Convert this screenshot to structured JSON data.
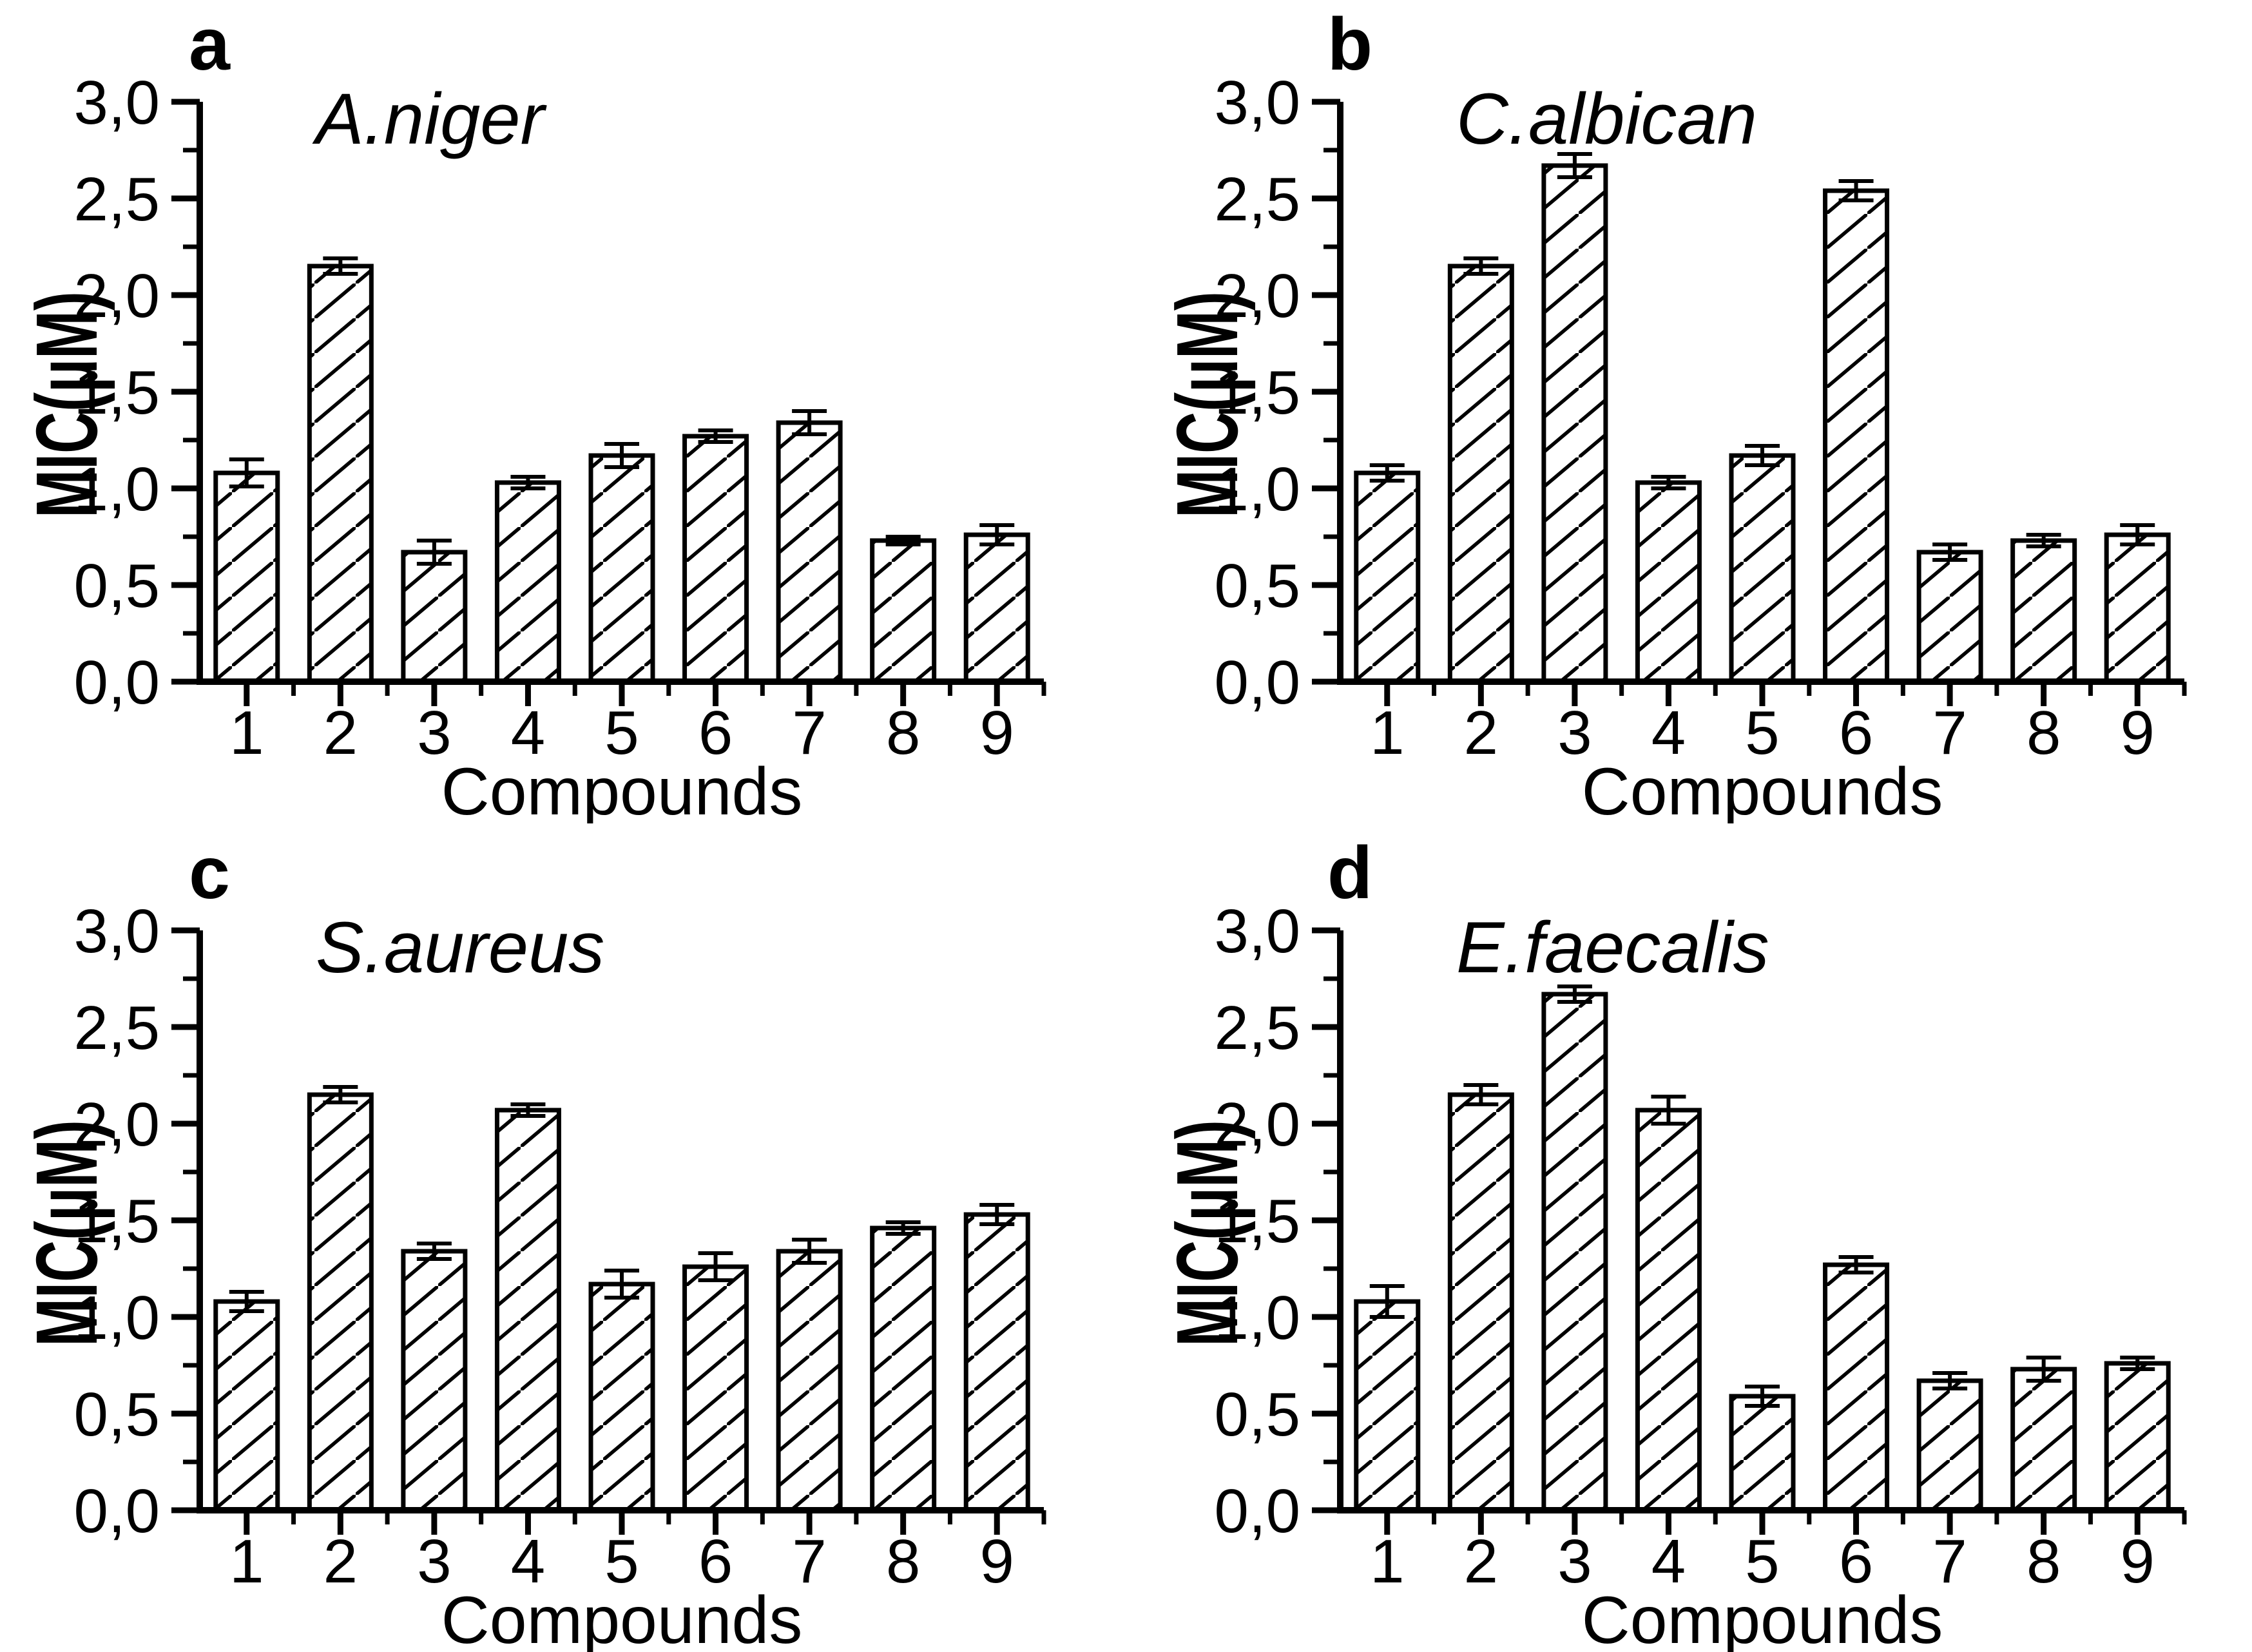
{
  "figure": {
    "background": "#ffffff",
    "ink": "#000000",
    "xlabel": "Compounds",
    "ylabel": "MIC(µM)",
    "categories": [
      "1",
      "2",
      "3",
      "4",
      "5",
      "6",
      "7",
      "8",
      "9"
    ],
    "y_tick_values": [
      0,
      0.5,
      1.0,
      1.5,
      2.0,
      2.5,
      3.0
    ],
    "y_tick_labels": [
      "0,0",
      "0,5",
      "1,0",
      "1,5",
      "2,0",
      "2,5",
      "3,0"
    ],
    "y_minor_values": [
      0.25,
      0.75,
      1.25,
      1.75,
      2.25,
      2.75
    ],
    "ylim": [
      0,
      3.0
    ]
  },
  "chart_data": [
    {
      "type": "bar",
      "panel_letter": "a",
      "title": "A.niger",
      "xlabel": "Compounds",
      "ylabel": "MIC(µM)",
      "categories": [
        "1",
        "2",
        "3",
        "4",
        "5",
        "6",
        "7",
        "8",
        "9"
      ],
      "values": [
        1.08,
        2.15,
        0.67,
        1.03,
        1.17,
        1.27,
        1.34,
        0.73,
        0.76
      ],
      "errors": [
        0.07,
        0.04,
        0.06,
        0.03,
        0.06,
        0.03,
        0.06,
        0.02,
        0.05
      ],
      "ylim": [
        0,
        3.0
      ],
      "bar_style": "diagonal-hatch",
      "legend": "none"
    },
    {
      "type": "bar",
      "panel_letter": "b",
      "title": "C.albican",
      "xlabel": "Compounds",
      "ylabel": "MIC(µM)",
      "categories": [
        "1",
        "2",
        "3",
        "4",
        "5",
        "6",
        "7",
        "8",
        "9"
      ],
      "values": [
        1.08,
        2.15,
        2.67,
        1.03,
        1.17,
        2.54,
        0.67,
        0.73,
        0.76
      ],
      "errors": [
        0.04,
        0.04,
        0.06,
        0.03,
        0.05,
        0.05,
        0.04,
        0.03,
        0.05
      ],
      "ylim": [
        0,
        3.0
      ],
      "bar_style": "diagonal-hatch",
      "legend": "none"
    },
    {
      "type": "bar",
      "panel_letter": "c",
      "title": "S.aureus",
      "xlabel": "Compounds",
      "ylabel": "MIC(µM)",
      "categories": [
        "1",
        "2",
        "3",
        "4",
        "5",
        "6",
        "7",
        "8",
        "9"
      ],
      "values": [
        1.08,
        2.15,
        1.34,
        2.07,
        1.17,
        1.26,
        1.34,
        1.46,
        1.53
      ],
      "errors": [
        0.05,
        0.04,
        0.04,
        0.03,
        0.07,
        0.07,
        0.06,
        0.03,
        0.05
      ],
      "ylim": [
        0,
        3.0
      ],
      "bar_style": "diagonal-hatch",
      "legend": "none"
    },
    {
      "type": "bar",
      "panel_letter": "d",
      "title": "E.faecalis",
      "xlabel": "Compounds",
      "ylabel": "MIC(µM)",
      "categories": [
        "1",
        "2",
        "3",
        "4",
        "5",
        "6",
        "7",
        "8",
        "9"
      ],
      "values": [
        1.08,
        2.15,
        2.67,
        2.07,
        0.59,
        1.27,
        0.67,
        0.73,
        0.76
      ],
      "errors": [
        0.08,
        0.05,
        0.04,
        0.07,
        0.05,
        0.04,
        0.04,
        0.06,
        0.03
      ],
      "ylim": [
        0,
        3.0
      ],
      "bar_style": "diagonal-hatch",
      "legend": "none"
    }
  ]
}
